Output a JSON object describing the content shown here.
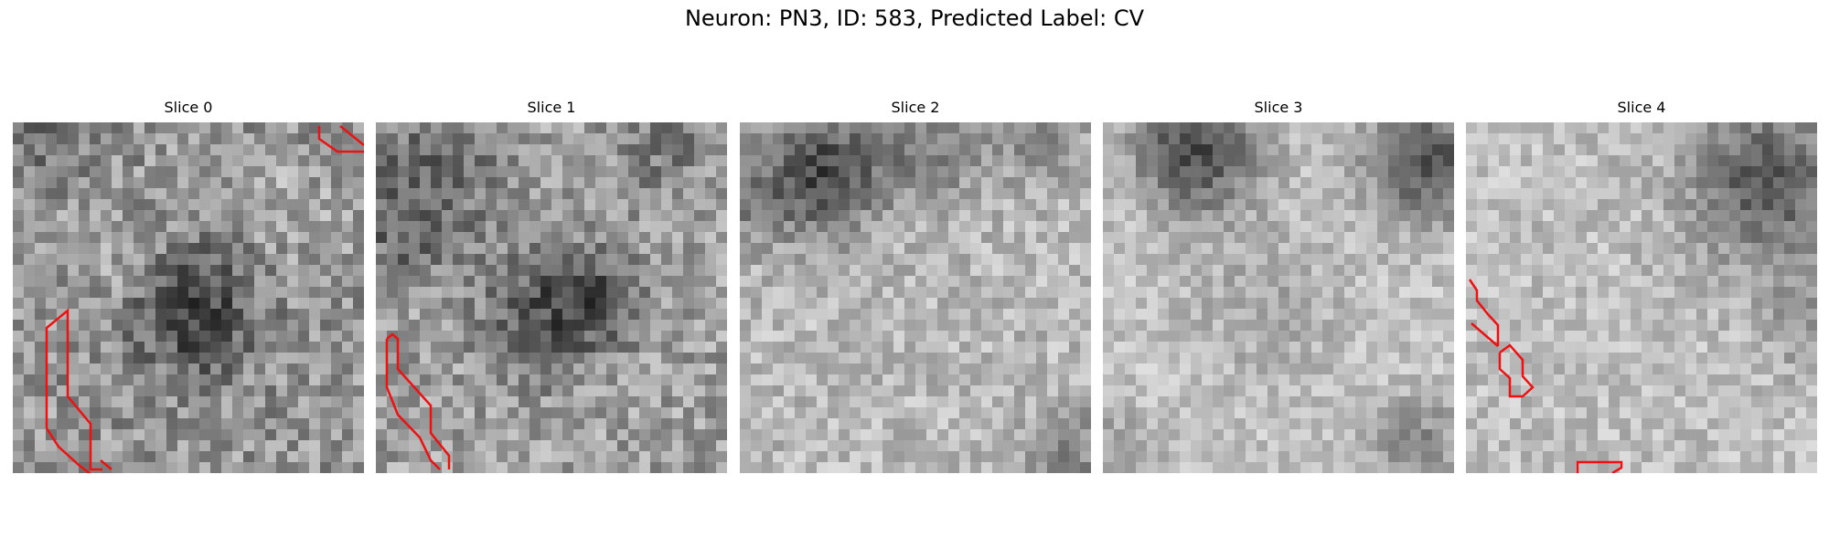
{
  "figure": {
    "title": "Neuron: PN3, ID: 583, Predicted Label: CV",
    "panels": [
      {
        "title": "Slice 0"
      },
      {
        "title": "Slice 1"
      },
      {
        "title": "Slice 2"
      },
      {
        "title": "Slice 3"
      },
      {
        "title": "Slice 4"
      }
    ],
    "contour_color": "#ee1111",
    "colormap": "gray"
  }
}
